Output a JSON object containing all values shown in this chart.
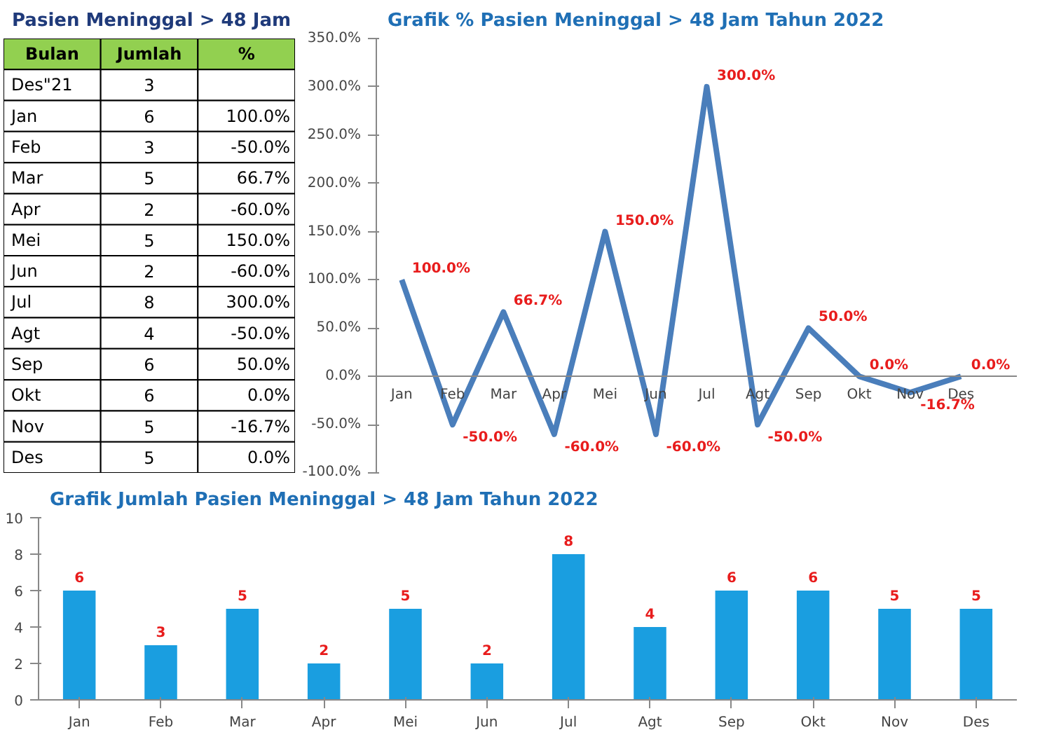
{
  "chart_data": [
    {
      "type": "other",
      "title": "Pasien Meninggal > 48 Jam",
      "data_labels": true,
      "xlabel": "Bulan",
      "categories": [
        "Des\"21",
        "Jan",
        "Feb",
        "Mar",
        "Apr",
        "Mei",
        "Jun",
        "Jul",
        "Agt",
        "Sep",
        "Okt",
        "Nov",
        "Des"
      ],
      "series": [
        {
          "name": "Jumlah",
          "values": [
            3,
            6,
            3,
            5,
            2,
            5,
            2,
            8,
            4,
            6,
            6,
            5,
            5
          ]
        },
        {
          "name": "%",
          "values": [
            null,
            100,
            -50,
            66.7,
            -60,
            150,
            -60,
            300,
            -50,
            50,
            0,
            -16.7,
            0
          ],
          "value_labels": [
            null,
            "100.0%",
            "-50.0%",
            "66.7%",
            "-60.0%",
            "150.0%",
            "-60.0%",
            "300.0%",
            "-50.0%",
            "50.0%",
            "0.0%",
            "-16.7%",
            "0.0%"
          ]
        }
      ]
    },
    {
      "type": "line",
      "title": "Grafik % Pasien Meninggal > 48 Jam Tahun 2022",
      "categories": [
        "Jan",
        "Feb",
        "Mar",
        "Apr",
        "Mei",
        "Jun",
        "Jul",
        "Agt",
        "Sep",
        "Okt",
        "Nov",
        "Des"
      ],
      "values": [
        100,
        -50,
        66.7,
        -60,
        150,
        -60,
        300,
        -50,
        50,
        0,
        -16.7,
        0
      ],
      "color": "#4a7ebb",
      "value_labels": [
        "100.0%",
        "-50.0%",
        "66.7%",
        "-60.0%",
        "150.0%",
        "-60.0%",
        "300.0%",
        "-50.0%",
        "50.0%",
        "0.0%",
        "-16.7%",
        "0.0%"
      ],
      "ylim": [
        -100,
        350
      ],
      "yticks": [
        {
          "value": -100,
          "label": "-100.0%"
        },
        {
          "value": -50,
          "label": "-50.0%"
        },
        {
          "value": 0,
          "label": "0.0%"
        },
        {
          "value": 50,
          "label": "50.0%"
        },
        {
          "value": 100,
          "label": "100.0%"
        },
        {
          "value": 150,
          "label": "150.0%"
        },
        {
          "value": 200,
          "label": "200.0%"
        },
        {
          "value": 250,
          "label": "250.0%"
        },
        {
          "value": 300,
          "label": "300.0%"
        },
        {
          "value": 350,
          "label": "350.0%"
        }
      ]
    },
    {
      "type": "bar",
      "title": "Grafik Jumlah Pasien Meninggal > 48 Jam Tahun 2022",
      "categories": [
        "Jan",
        "Feb",
        "Mar",
        "Apr",
        "Mei",
        "Jun",
        "Jul",
        "Agt",
        "Sep",
        "Okt",
        "Nov",
        "Des"
      ],
      "values": [
        6,
        3,
        5,
        2,
        5,
        2,
        8,
        4,
        6,
        6,
        5,
        5
      ],
      "color": "#1a9ee0",
      "data_labels": true,
      "ylim": [
        0,
        10
      ],
      "yticks": [
        0,
        2,
        4,
        6,
        8,
        10
      ]
    }
  ]
}
